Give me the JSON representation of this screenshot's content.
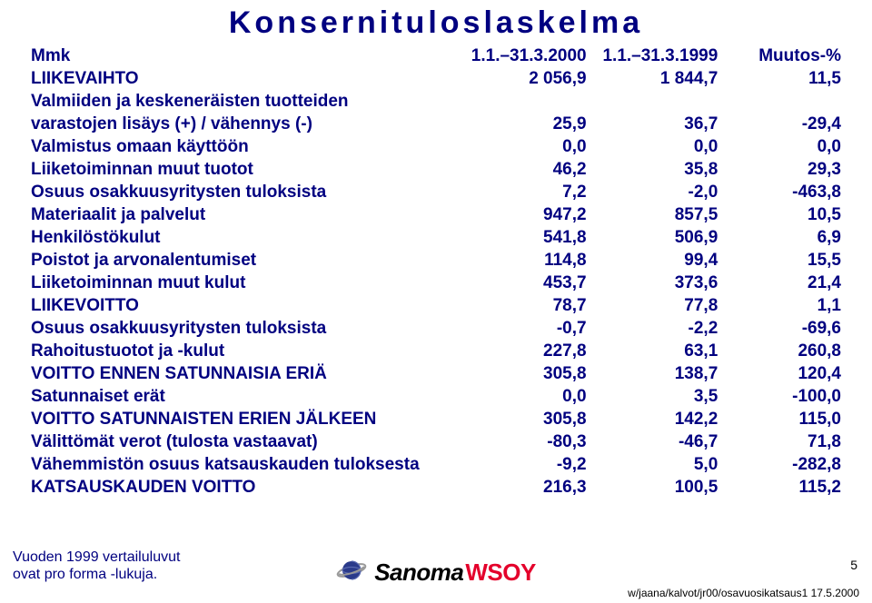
{
  "title": "Konsernituloslaskelma",
  "head": {
    "c0": "Mmk",
    "c1": "1.1.–31.3.2000",
    "c2": "1.1.–31.3.1999",
    "c3": "Muutos-%"
  },
  "rows": [
    {
      "label": "LIIKEVAIHTO",
      "c1": "2 056,9",
      "c2": "1 844,7",
      "c3": "11,5"
    },
    {
      "label": "Valmiiden ja keskeneräisten tuotteiden",
      "c1": "",
      "c2": "",
      "c3": ""
    },
    {
      "label": "varastojen lisäys (+) / vähennys (-)",
      "c1": "25,9",
      "c2": "36,7",
      "c3": "-29,4"
    },
    {
      "label": "Valmistus omaan käyttöön",
      "c1": "0,0",
      "c2": "0,0",
      "c3": "0,0"
    },
    {
      "label": "Liiketoiminnan muut tuotot",
      "c1": "46,2",
      "c2": "35,8",
      "c3": "29,3"
    },
    {
      "label": "Osuus osakkuusyritysten tuloksista",
      "c1": "7,2",
      "c2": "-2,0",
      "c3": "-463,8"
    },
    {
      "label": "Materiaalit ja palvelut",
      "c1": "947,2",
      "c2": "857,5",
      "c3": "10,5"
    },
    {
      "label": "Henkilöstökulut",
      "c1": "541,8",
      "c2": "506,9",
      "c3": "6,9"
    },
    {
      "label": "Poistot ja arvonalentumiset",
      "c1": "114,8",
      "c2": "99,4",
      "c3": "15,5"
    },
    {
      "label": "Liiketoiminnan muut kulut",
      "c1": "453,7",
      "c2": "373,6",
      "c3": "21,4"
    },
    {
      "label": "LIIKEVOITTO",
      "c1": "78,7",
      "c2": "77,8",
      "c3": "1,1"
    },
    {
      "label": "Osuus osakkuusyritysten tuloksista",
      "c1": "-0,7",
      "c2": "-2,2",
      "c3": "-69,6"
    },
    {
      "label": "Rahoitustuotot ja -kulut",
      "c1": "227,8",
      "c2": "63,1",
      "c3": "260,8"
    },
    {
      "label": "VOITTO ENNEN SATUNNAISIA ERIÄ",
      "c1": "305,8",
      "c2": "138,7",
      "c3": "120,4"
    },
    {
      "label": "Satunnaiset erät",
      "c1": "0,0",
      "c2": "3,5",
      "c3": "-100,0"
    },
    {
      "label": "VOITTO SATUNNAISTEN ERIEN JÄLKEEN",
      "c1": "305,8",
      "c2": "142,2",
      "c3": "115,0"
    },
    {
      "label": "Välittömät verot (tulosta vastaavat)",
      "c1": "-80,3",
      "c2": "-46,7",
      "c3": "71,8"
    },
    {
      "label": "Vähemmistön osuus katsauskauden tuloksesta",
      "c1": "-9,2",
      "c2": "5,0",
      "c3": "-282,8"
    },
    {
      "label": "KATSAUSKAUDEN VOITTO",
      "c1": "216,3",
      "c2": "100,5",
      "c3": "115,2"
    }
  ],
  "footnote1": "Vuoden 1999 vertailuluvut",
  "footnote2": "ovat pro forma -lukuja.",
  "logo": {
    "sanoma": "Sanoma",
    "wsoy": "WSOY"
  },
  "footer_path": "w/jaana/kalvot/jr00/osavuosikatsaus1 17.5.2000",
  "page_num": "5",
  "colors": {
    "text": "#000080",
    "wsoy": "#e4002b",
    "planet_ring": "#999999",
    "planet_fill": "#2a3a8a"
  }
}
